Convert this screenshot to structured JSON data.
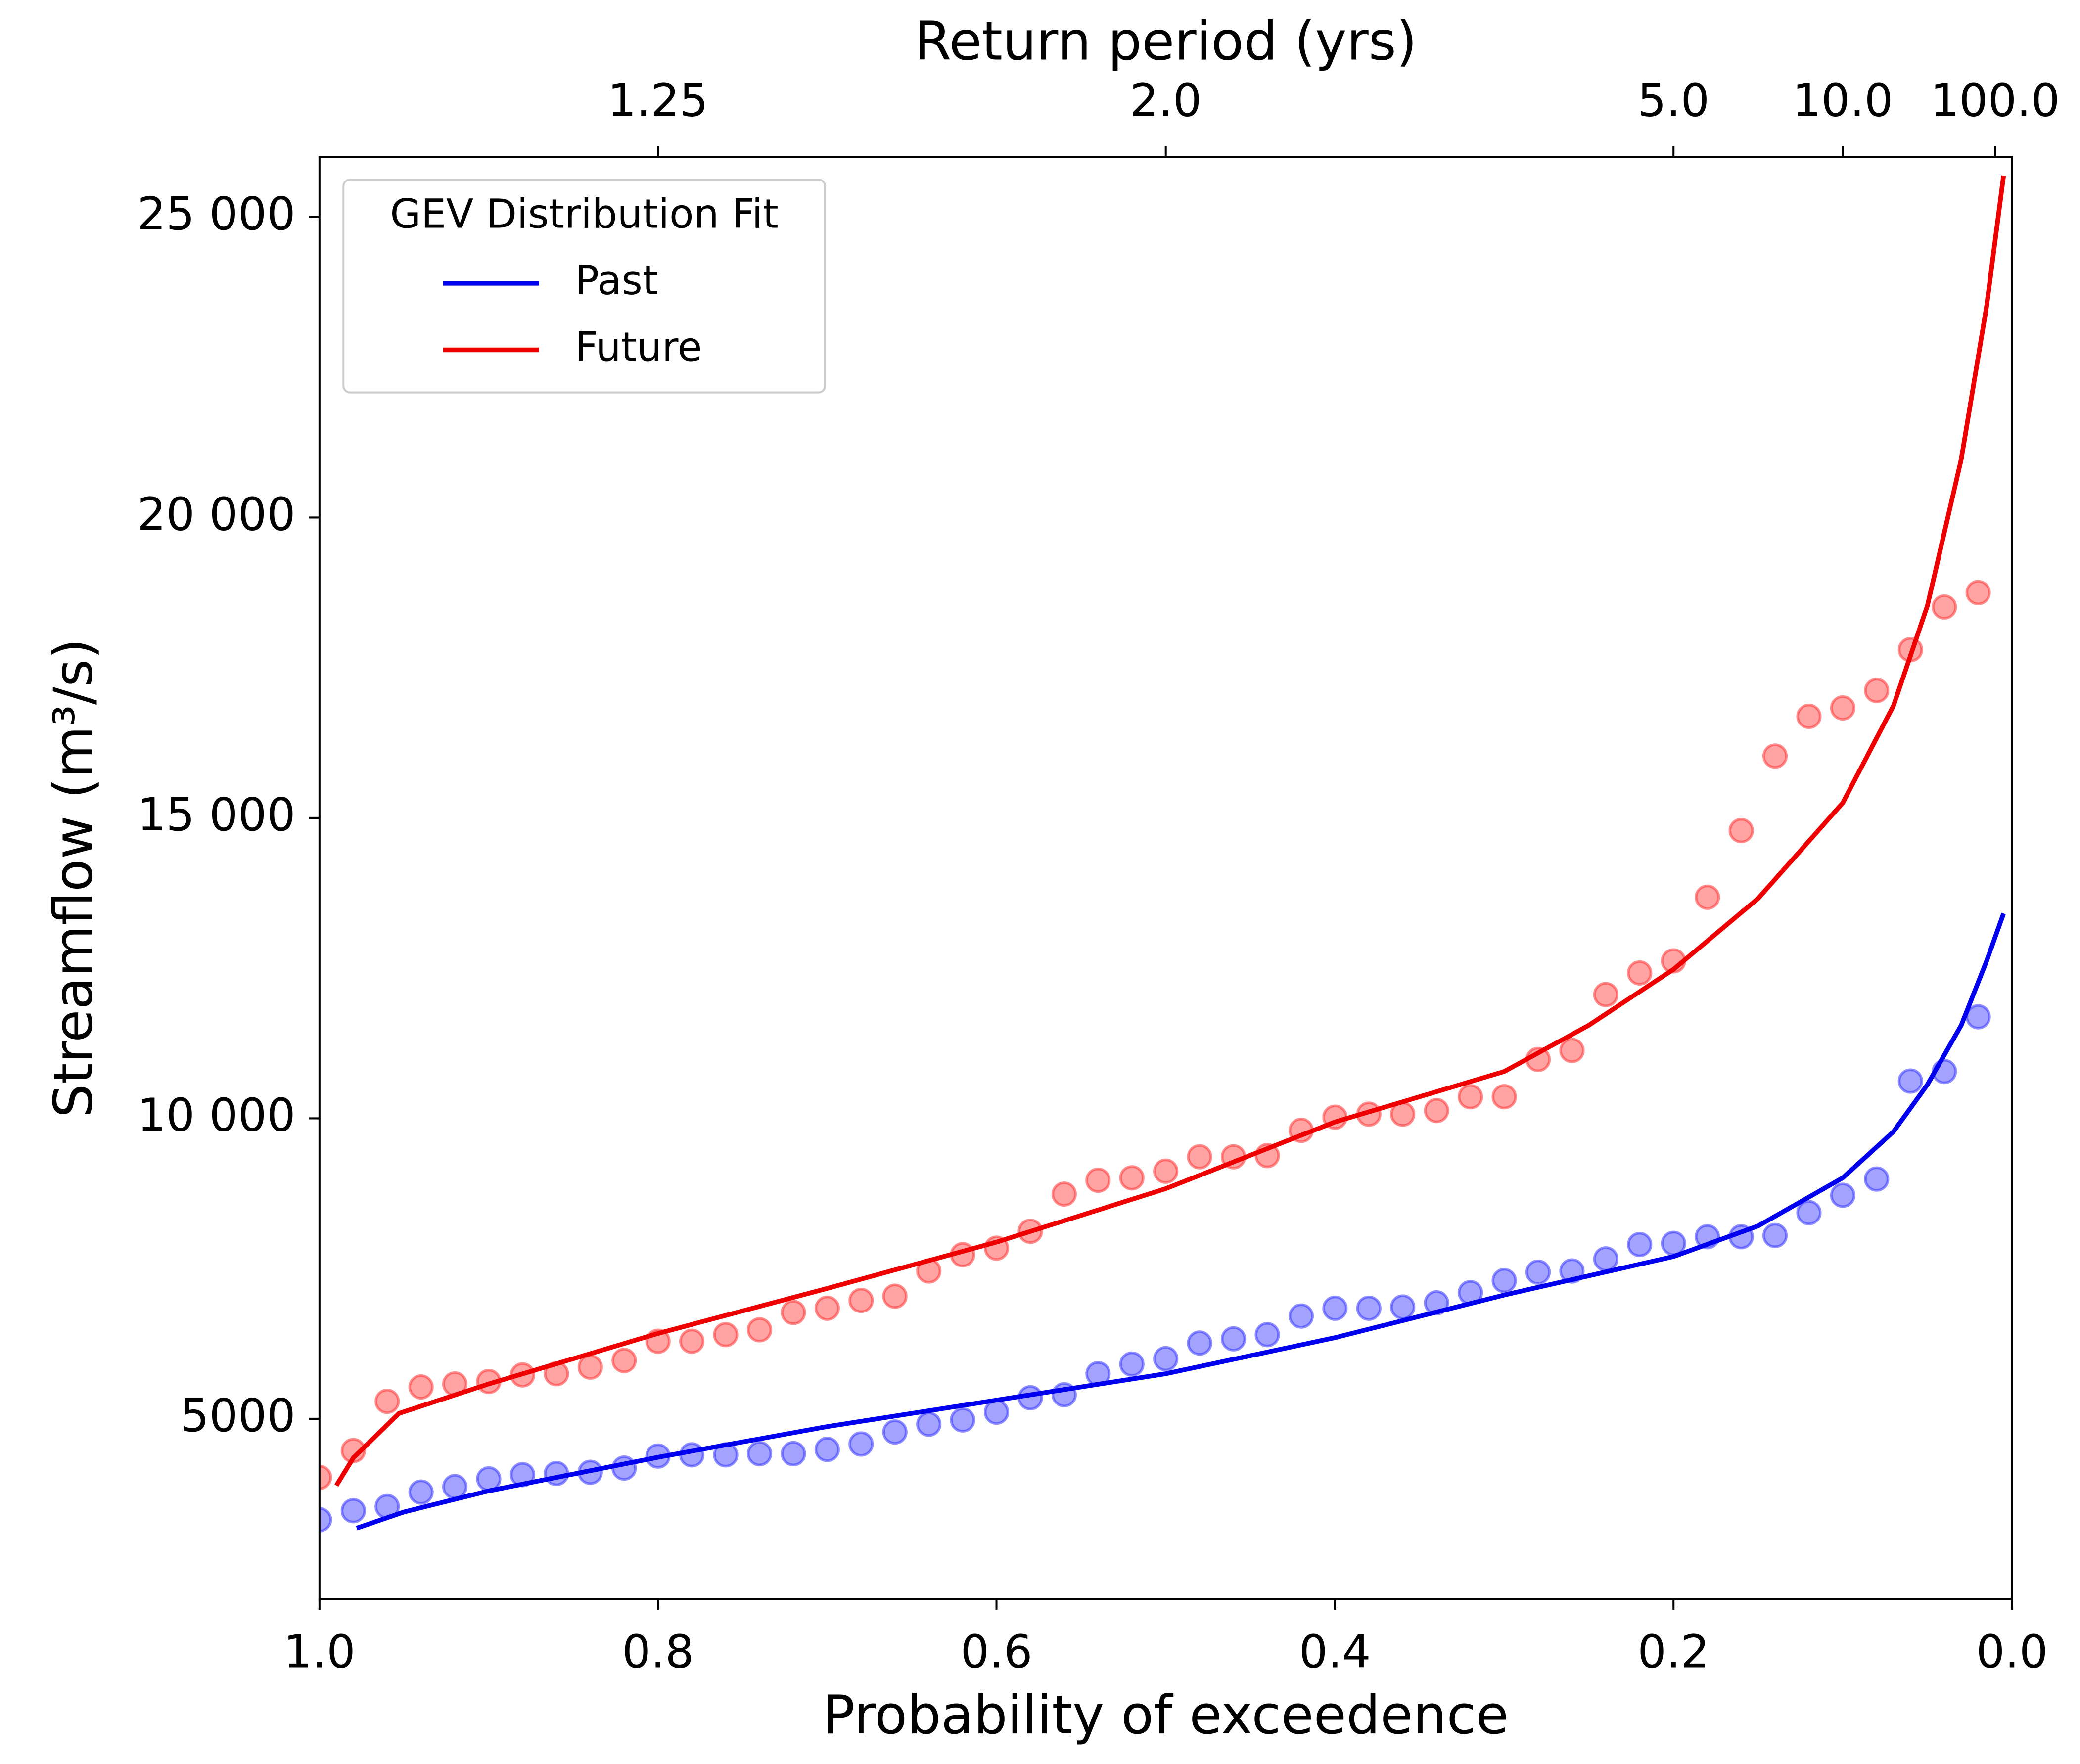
{
  "chart_data": {
    "type": "line",
    "xlabel": "Probability of exceedence",
    "ylabel": "Streamflow (m³/s)",
    "x2label": "Return period (yrs)",
    "xlim": [
      1.0,
      0.0
    ],
    "xticks": [
      {
        "value": 1,
        "label": "1.0"
      },
      0.8,
      0.6,
      0.4,
      0.2,
      {
        "value": 0,
        "label": "0.0"
      }
    ],
    "x2ticks": [
      1.25,
      {
        "value": 2,
        "label": "2.0"
      },
      {
        "value": 5,
        "label": "5.0"
      },
      {
        "value": 10,
        "label": "10.0"
      },
      {
        "value": 100,
        "label": "100.0"
      }
    ],
    "ylim": [
      2000,
      26000
    ],
    "yticks": [
      5000,
      {
        "value": 10000,
        "label": "10 000"
      },
      {
        "value": 15000,
        "label": "15 000"
      },
      {
        "value": 20000,
        "label": "20 000"
      },
      {
        "value": 25000,
        "label": "25 000"
      }
    ],
    "legend_title": "GEV Distribution Fit",
    "legend_position": "upper left",
    "series": [
      {
        "name": "Past",
        "color": "#0000ee",
        "x": [
          0.978,
          0.95,
          0.9,
          0.8,
          0.7,
          0.6,
          0.5,
          0.4,
          0.3,
          0.2,
          0.15,
          0.1,
          0.07,
          0.05,
          0.03,
          0.015,
          0.005
        ],
        "values": [
          3180,
          3450,
          3800,
          4360,
          4870,
          5310,
          5750,
          6350,
          7060,
          7700,
          8210,
          9010,
          9780,
          10560,
          11550,
          12620,
          13410
        ]
      },
      {
        "name": "Future",
        "color": "#ee0000",
        "x": [
          0.99,
          0.98,
          0.953,
          0.9,
          0.8,
          0.7,
          0.6,
          0.5,
          0.4,
          0.3,
          0.25,
          0.2,
          0.15,
          0.1,
          0.07,
          0.05,
          0.03,
          0.015,
          0.005
        ],
        "values": [
          3890,
          4350,
          5090,
          5580,
          6420,
          7170,
          7940,
          8830,
          9940,
          10780,
          11550,
          12480,
          13660,
          15250,
          16870,
          18530,
          20970,
          23520,
          25690
        ]
      }
    ],
    "points": [
      {
        "color": "#3333ff",
        "x": [
          1.0,
          0.98,
          0.96,
          0.94,
          0.92,
          0.9,
          0.88,
          0.86,
          0.84,
          0.82,
          0.8,
          0.78,
          0.76,
          0.74,
          0.72,
          0.7,
          0.68,
          0.66,
          0.64,
          0.62,
          0.6,
          0.58,
          0.56,
          0.54,
          0.52,
          0.5,
          0.48,
          0.46,
          0.44,
          0.42,
          0.4,
          0.38,
          0.36,
          0.34,
          0.32,
          0.3,
          0.28,
          0.26,
          0.24,
          0.22,
          0.2,
          0.18,
          0.16,
          0.14,
          0.12,
          0.1,
          0.08,
          0.06,
          0.04,
          0.02
        ],
        "values": [
          3320,
          3470,
          3540,
          3780,
          3870,
          4000,
          4070,
          4090,
          4110,
          4180,
          4380,
          4400,
          4400,
          4420,
          4420,
          4490,
          4580,
          4780,
          4910,
          4980,
          5110,
          5350,
          5400,
          5750,
          5910,
          6000,
          6260,
          6330,
          6400,
          6710,
          6840,
          6840,
          6860,
          6930,
          7100,
          7300,
          7440,
          7460,
          7660,
          7900,
          7920,
          8030,
          8030,
          8050,
          8430,
          8720,
          8990,
          10620,
          10780,
          11690
        ]
      },
      {
        "color": "#ff3333",
        "x": [
          1.0,
          0.98,
          0.96,
          0.94,
          0.92,
          0.9,
          0.88,
          0.86,
          0.84,
          0.82,
          0.8,
          0.78,
          0.76,
          0.74,
          0.72,
          0.7,
          0.68,
          0.66,
          0.64,
          0.62,
          0.6,
          0.58,
          0.56,
          0.54,
          0.52,
          0.5,
          0.48,
          0.46,
          0.44,
          0.42,
          0.4,
          0.38,
          0.36,
          0.34,
          0.32,
          0.3,
          0.28,
          0.26,
          0.24,
          0.22,
          0.2,
          0.18,
          0.16,
          0.14,
          0.12,
          0.1,
          0.08,
          0.06,
          0.04,
          0.02
        ],
        "values": [
          4025,
          4470,
          5290,
          5530,
          5580,
          5620,
          5730,
          5750,
          5860,
          5970,
          6290,
          6290,
          6400,
          6480,
          6770,
          6840,
          6970,
          7040,
          7460,
          7730,
          7840,
          8120,
          8740,
          8970,
          9010,
          9120,
          9360,
          9360,
          9380,
          9800,
          10020,
          10070,
          10070,
          10130,
          10360,
          10360,
          10980,
          11130,
          12060,
          12420,
          12620,
          13680,
          14790,
          16030,
          16690,
          16830,
          17120,
          17800,
          18510,
          18750
        ]
      }
    ]
  }
}
